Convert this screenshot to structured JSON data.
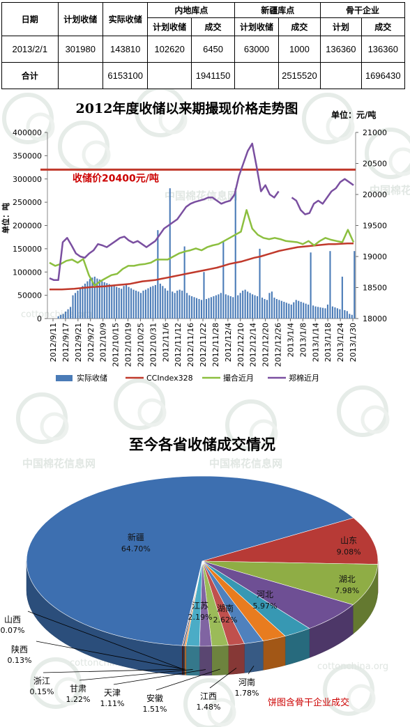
{
  "table": {
    "headers": {
      "date": "日期",
      "planned": "计划收储",
      "actual": "实际收储",
      "inland_group": "内地库点",
      "xinjiang_group": "新疆库点",
      "backbone_group": "骨干企业",
      "inland_planned": "计划收储",
      "inland_deal": "成交",
      "xj_planned": "计划收储",
      "xj_deal": "成交",
      "bb_planned": "计划",
      "bb_deal": "成交"
    },
    "row": {
      "date": "2013/2/1",
      "planned": "301980",
      "actual": "143810",
      "inland_planned": "102620",
      "inland_deal": "6450",
      "xj_planned": "63000",
      "xj_deal": "1000",
      "bb_planned": "136360",
      "bb_deal": "136360"
    },
    "total": {
      "label": "合计",
      "actual": "6153100",
      "inland_deal": "1941150",
      "xj_deal": "2515520",
      "bb_deal": "1696430"
    }
  },
  "watermarks": {
    "text_cn": "中国棉花信息网",
    "text_en": "cottonchina.org"
  },
  "chart_data": [
    {
      "type": "bar+line",
      "title": "2012年度收储以来期撮现价格走势图",
      "unit_right": "单位：元/吨",
      "ylabel_left": "单位：吨",
      "annotation": "收储价20400元/吨",
      "annotation_value": 20400,
      "ylim_left": [
        0,
        400000
      ],
      "ylim_right": [
        18000,
        21000
      ],
      "yticks_left": [
        "0",
        "50000",
        "100000",
        "150000",
        "200000",
        "250000",
        "300000",
        "350000",
        "400000"
      ],
      "yticks_right": [
        "18000",
        "18500",
        "19000",
        "19500",
        "20000",
        "20500",
        "21000"
      ],
      "x_tick_labels": [
        "2012/9/11",
        "2012/9/17",
        "2012/9/21",
        "2012/9/27",
        "2012/10/9",
        "2012/10/15",
        "2012/10/19",
        "2012/10/25",
        "2012/10/31",
        "2012/11/6",
        "2012/11/12",
        "2012/11/16",
        "2012/11/22",
        "2012/11/28",
        "2012/12/4",
        "2012/12/10",
        "2012/12/14",
        "2012/12/20",
        "2012/12/26",
        "2013/1/4",
        "2013/1/8",
        "2013/1/14",
        "2013/1/18",
        "2013/1/24",
        "2013/1/30"
      ],
      "legend": [
        "实际收储",
        "CCIndex328",
        "撮合近月",
        "郑棉近月"
      ],
      "colors": {
        "bars": "#4a7bb7",
        "ccindex": "#c0392b",
        "match": "#8cbf3f",
        "zheng": "#7a4fa0",
        "refline": "#c0392b",
        "annot": "#cc0000"
      },
      "bars": [
        0,
        0,
        0,
        0,
        5000,
        8000,
        10000,
        15000,
        20000,
        25000,
        50000,
        55000,
        60000,
        65000,
        70000,
        75000,
        80000,
        85000,
        88000,
        90000,
        86000,
        84000,
        80000,
        78000,
        76000,
        74000,
        72000,
        70000,
        68000,
        66000,
        64000,
        70000,
        72000,
        68000,
        65000,
        62000,
        60000,
        58000,
        55000,
        60000,
        62000,
        65000,
        68000,
        70000,
        72000,
        190000,
        75000,
        70000,
        65000,
        60000,
        280000,
        58000,
        55000,
        60000,
        62000,
        60000,
        155000,
        55000,
        50000,
        48000,
        46000,
        44000,
        42000,
        40000,
        100000,
        42000,
        44000,
        46000,
        48000,
        50000,
        52000,
        55000,
        165000,
        52000,
        50000,
        48000,
        46000,
        280000,
        50000,
        55000,
        60000,
        62000,
        58000,
        55000,
        52000,
        50000,
        48000,
        150000,
        45000,
        42000,
        40000,
        55000,
        58000,
        45000,
        42000,
        40000,
        38000,
        36000,
        34000,
        32000,
        30000,
        35000,
        40000,
        38000,
        36000,
        34000,
        32000,
        30000,
        142000,
        28000,
        26000,
        25000,
        24000,
        23000,
        22000,
        30000,
        145000,
        26000,
        24000,
        22000,
        20000,
        90000,
        18000,
        16000,
        10000,
        8000,
        145000
      ],
      "ccindex": [
        18470,
        18470,
        18470,
        18475,
        18480,
        18490,
        18500,
        18510,
        18515,
        18520,
        18530,
        18540,
        18550,
        18560,
        18580,
        18600,
        18610,
        18620,
        18640,
        18660,
        18680,
        18700,
        18720,
        18740,
        18760,
        18780,
        18800,
        18820,
        18850,
        18880,
        18900,
        18920,
        18950,
        18980,
        19000,
        19030,
        19060,
        19090,
        19110,
        19130,
        19150,
        19160,
        19170,
        19180,
        19190,
        19200,
        19200,
        19205,
        19210,
        19210
      ],
      "match": [
        18900,
        18850,
        18880,
        18930,
        18950,
        18900,
        18960,
        18700,
        18530,
        18600,
        18650,
        18700,
        18720,
        18800,
        18850,
        18850,
        18870,
        18880,
        18900,
        18950,
        18950,
        18950,
        19000,
        19050,
        19080,
        19100,
        19130,
        19100,
        19150,
        19180,
        19200,
        19250,
        19300,
        19350,
        19400,
        19750,
        19450,
        19350,
        19300,
        19280,
        19300,
        19280,
        19250,
        19240,
        19230,
        19200,
        19250,
        19180,
        19250,
        19300,
        19270,
        19250,
        19230,
        19430,
        19230
      ],
      "zheng": [
        18650,
        18620,
        18620,
        19230,
        19300,
        19180,
        19050,
        19000,
        18980,
        19050,
        19100,
        19200,
        19180,
        19150,
        19200,
        19250,
        19300,
        19320,
        19260,
        19220,
        19250,
        19200,
        19150,
        19200,
        19250,
        19350,
        19450,
        19500,
        19550,
        19600,
        19700,
        19800,
        19850,
        19880,
        19900,
        19920,
        19950,
        19950,
        19900,
        19850,
        19880,
        19900,
        20000,
        20300,
        20500,
        20700,
        20820,
        20450,
        20050,
        20150,
        20000,
        19950,
        20050,
        null,
        null,
        19950,
        19900,
        19750,
        19680,
        19700,
        19850,
        19900,
        19850,
        19950,
        20050,
        20100,
        20200,
        20250,
        20200,
        20150
      ]
    },
    {
      "type": "pie",
      "title": "至今各省收储成交情况",
      "note": "饼图含骨干企业成交",
      "slices": [
        {
          "label": "新疆",
          "value": 64.7,
          "text": "64.70%",
          "color": "#3d6fb0"
        },
        {
          "label": "山东",
          "value": 9.08,
          "text": "9.08%",
          "color": "#b73a36"
        },
        {
          "label": "湖北",
          "value": 7.98,
          "text": "7.98%",
          "color": "#8fad45"
        },
        {
          "label": "河北",
          "value": 5.97,
          "text": "5.97%",
          "color": "#6e4f94"
        },
        {
          "label": "湖南",
          "value": 2.62,
          "text": "2.62%",
          "color": "#3798b3"
        },
        {
          "label": "江苏",
          "value": 2.19,
          "text": "2.19%",
          "color": "#e87c1f"
        },
        {
          "label": "河南",
          "value": 1.78,
          "text": "1.78%",
          "color": "#4f81bd"
        },
        {
          "label": "江西",
          "value": 1.48,
          "text": "1.48%",
          "color": "#c0504d"
        },
        {
          "label": "安徽",
          "value": 1.51,
          "text": "1.51%",
          "color": "#9bbb59"
        },
        {
          "label": "天津",
          "value": 1.11,
          "text": "1.11%",
          "color": "#8064a2"
        },
        {
          "label": "甘肃",
          "value": 1.22,
          "text": "1.22%",
          "color": "#4bacc6"
        },
        {
          "label": "浙江",
          "value": 0.15,
          "text": "0.15%",
          "color": "#f79646"
        },
        {
          "label": "陕西",
          "value": 0.13,
          "text": "0.13%",
          "color": "#2c4d75"
        },
        {
          "label": "山西",
          "value": 0.07,
          "text": "0.07%",
          "color": "#772c2a"
        }
      ]
    }
  ]
}
